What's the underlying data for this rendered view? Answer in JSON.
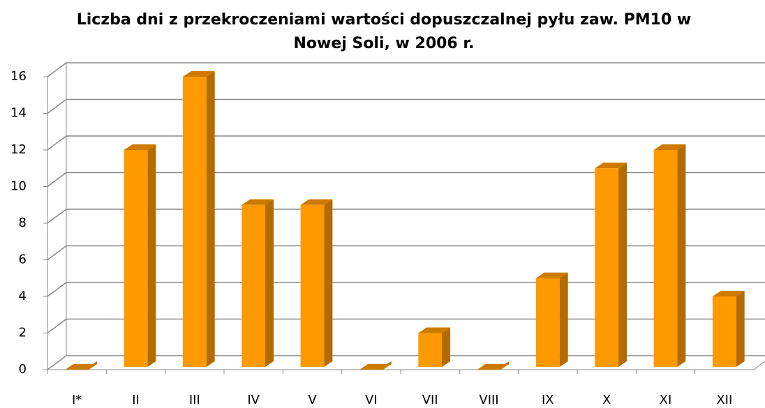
{
  "chart_data": {
    "type": "bar3d",
    "title": "Liczba dni z przekroczeniami wartości dopuszczalnej pyłu zaw. PM10 w Nowej Soli, w 2006 r.",
    "categories": [
      "I*",
      "II",
      "III",
      "IV",
      "V",
      "VI",
      "VII",
      "VIII",
      "IX",
      "X",
      "XI",
      "XII"
    ],
    "values": [
      0,
      12,
      16,
      9,
      9,
      0,
      2,
      0,
      5,
      11,
      12,
      4
    ],
    "color": "#ff9900",
    "ylim": [
      0,
      16
    ],
    "yticks": [
      0,
      2,
      4,
      6,
      8,
      10,
      12,
      14,
      16
    ],
    "grid": true
  }
}
